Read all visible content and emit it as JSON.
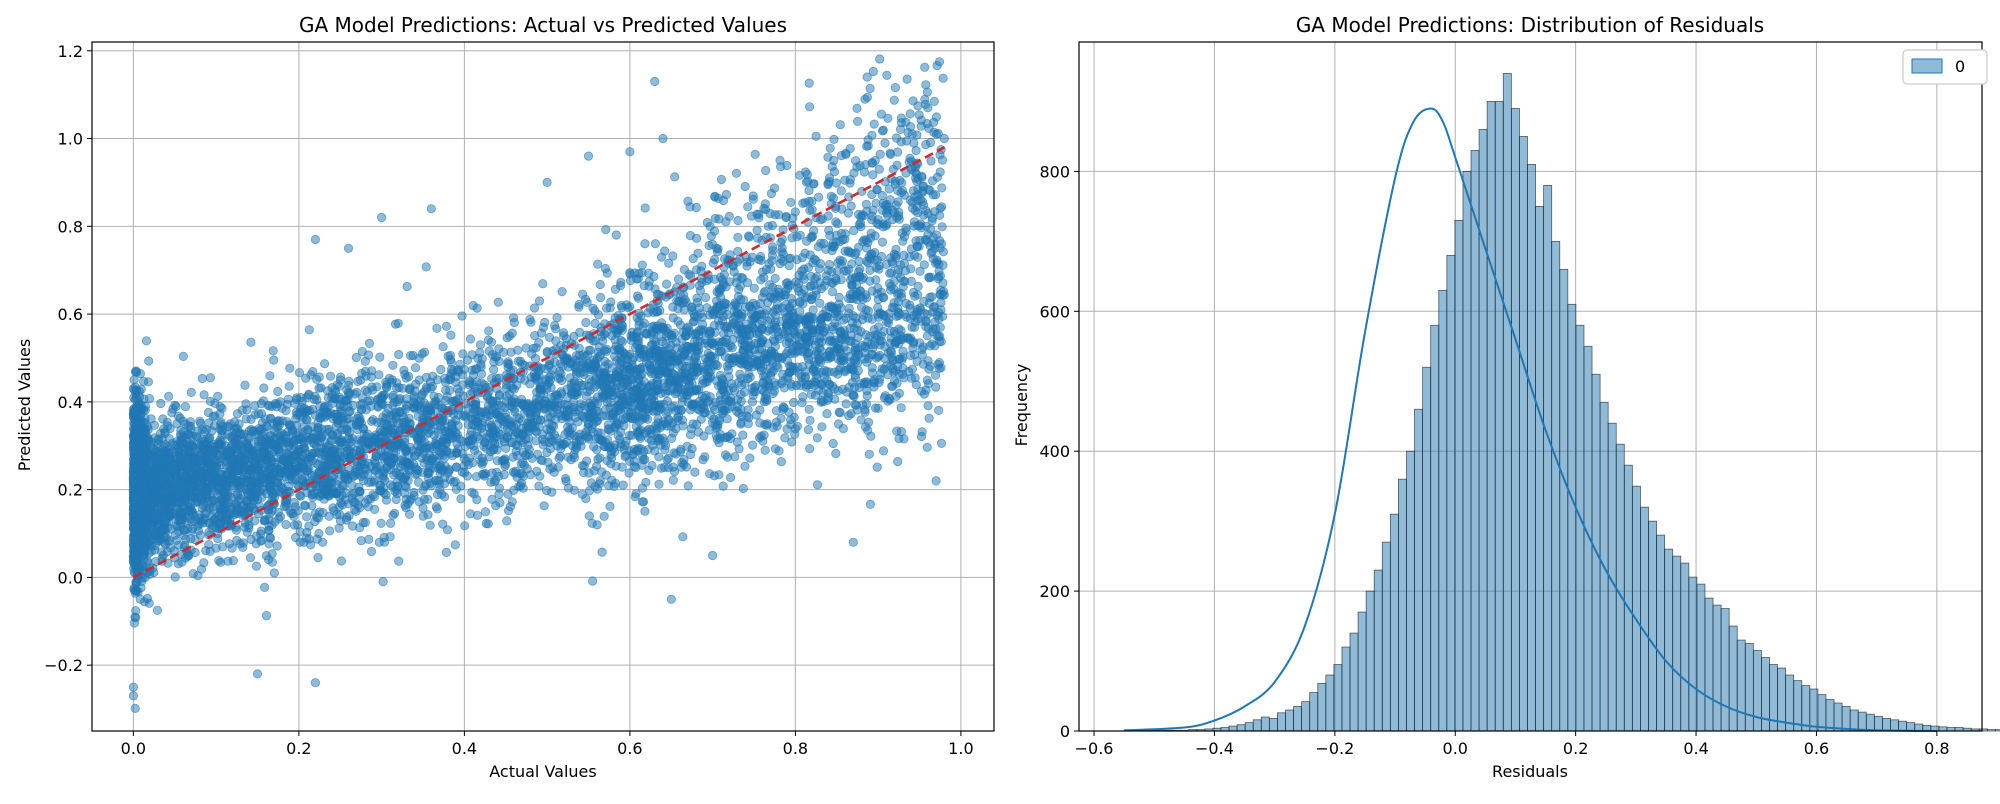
{
  "chart_data": [
    {
      "type": "scatter",
      "title": "GA Model Predictions: Actual vs Predicted Values",
      "xlabel": "Actual Values",
      "ylabel": "Predicted Values",
      "xlim": [
        -0.05,
        1.04
      ],
      "ylim": [
        -0.35,
        1.22
      ],
      "grid": true,
      "x_ticks": [
        0.0,
        0.2,
        0.4,
        0.6,
        0.8,
        1.0
      ],
      "x_tick_labels": [
        "0.0",
        "0.2",
        "0.4",
        "0.6",
        "0.8",
        "1.0"
      ],
      "y_ticks": [
        -0.2,
        0.0,
        0.2,
        0.4,
        0.6,
        0.8,
        1.0,
        1.2
      ],
      "y_tick_labels": [
        "−0.2",
        "0.0",
        "0.2",
        "0.4",
        "0.6",
        "0.8",
        "1.0",
        "1.2"
      ],
      "point_color": "#1f77b4",
      "point_alpha": 0.5,
      "approx_relationship": "predicted ≈ 0.2 + 0.5·actual with spread; dense cluster at actual 0–0.4, predicted 0–0.4",
      "sample_points": [
        {
          "x": 0.0,
          "y": 0.22
        },
        {
          "x": 0.0,
          "y": -0.27
        },
        {
          "x": 0.0,
          "y": -0.25
        },
        {
          "x": 0.0,
          "y": 0.43
        },
        {
          "x": 0.05,
          "y": 0.18
        },
        {
          "x": 0.1,
          "y": 0.25
        },
        {
          "x": 0.15,
          "y": -0.22
        },
        {
          "x": 0.22,
          "y": -0.24
        },
        {
          "x": 0.22,
          "y": 0.77
        },
        {
          "x": 0.26,
          "y": 0.75
        },
        {
          "x": 0.3,
          "y": 0.82
        },
        {
          "x": 0.36,
          "y": 0.84
        },
        {
          "x": 0.5,
          "y": 0.9
        },
        {
          "x": 0.55,
          "y": 0.96
        },
        {
          "x": 0.6,
          "y": 0.97
        },
        {
          "x": 0.63,
          "y": 1.13
        },
        {
          "x": 0.64,
          "y": 1.0
        },
        {
          "x": 0.65,
          "y": -0.05
        },
        {
          "x": 0.7,
          "y": 0.05
        },
        {
          "x": 0.87,
          "y": 0.08
        },
        {
          "x": 0.96,
          "y": 1.07
        },
        {
          "x": 0.98,
          "y": 1.0
        },
        {
          "x": 0.97,
          "y": 0.22
        },
        {
          "x": 0.9,
          "y": 0.6
        }
      ],
      "reference_line": {
        "x": [
          0.0,
          0.98
        ],
        "y": [
          0.0,
          0.98
        ],
        "color": "#d62728",
        "style": "dashed",
        "label": ""
      }
    },
    {
      "type": "histogram",
      "title": "GA Model Predictions: Distribution of Residuals",
      "xlabel": "Residuals",
      "ylabel": "Frequency",
      "xlim": [
        -0.625,
        0.875
      ],
      "ylim": [
        0,
        985
      ],
      "grid": true,
      "x_ticks": [
        -0.6,
        -0.4,
        -0.2,
        0.0,
        0.2,
        0.4,
        0.6,
        0.8
      ],
      "x_tick_labels": [
        "−0.6",
        "−0.4",
        "−0.2",
        "0.0",
        "0.2",
        "0.4",
        "0.6",
        "0.8"
      ],
      "y_ticks": [
        0,
        200,
        400,
        600,
        800
      ],
      "y_tick_labels": [
        "0",
        "200",
        "400",
        "600",
        "800"
      ],
      "bar_color": "#1f77b4",
      "bar_alpha": 0.5,
      "legend": {
        "entries": [
          "0"
        ],
        "position": "top-right"
      },
      "bin_width": 0.0134,
      "bin_start": -0.55,
      "bin_counts": [
        1,
        1,
        1,
        1,
        1,
        1,
        1,
        1,
        2,
        2,
        3,
        4,
        5,
        7,
        9,
        12,
        16,
        20,
        18,
        26,
        30,
        35,
        42,
        55,
        68,
        80,
        95,
        120,
        140,
        170,
        200,
        230,
        270,
        310,
        360,
        400,
        460,
        520,
        580,
        630,
        680,
        730,
        800,
        830,
        860,
        900,
        900,
        940,
        890,
        850,
        810,
        750,
        780,
        700,
        660,
        610,
        580,
        550,
        510,
        470,
        440,
        410,
        380,
        350,
        320,
        300,
        280,
        260,
        250,
        240,
        220,
        210,
        190,
        180,
        175,
        150,
        130,
        125,
        115,
        105,
        95,
        90,
        80,
        72,
        65,
        60,
        52,
        45,
        40,
        35,
        30,
        27,
        24,
        21,
        18,
        16,
        14,
        12,
        10,
        8,
        7,
        6,
        5,
        5,
        4,
        3,
        3,
        2,
        2,
        2,
        1,
        1,
        1,
        1,
        1,
        1
      ],
      "kde_x": [
        -0.55,
        -0.45,
        -0.4,
        -0.35,
        -0.3,
        -0.25,
        -0.2,
        -0.15,
        -0.1,
        -0.07,
        -0.04,
        -0.02,
        0.0,
        0.05,
        0.1,
        0.15,
        0.2,
        0.25,
        0.3,
        0.35,
        0.4,
        0.45,
        0.5,
        0.55,
        0.6,
        0.65,
        0.7,
        0.8
      ],
      "kde_y": [
        1,
        5,
        15,
        35,
        70,
        150,
        310,
        570,
        790,
        870,
        890,
        870,
        820,
        690,
        560,
        430,
        320,
        230,
        160,
        100,
        60,
        35,
        20,
        12,
        6,
        3,
        1,
        0
      ]
    }
  ]
}
